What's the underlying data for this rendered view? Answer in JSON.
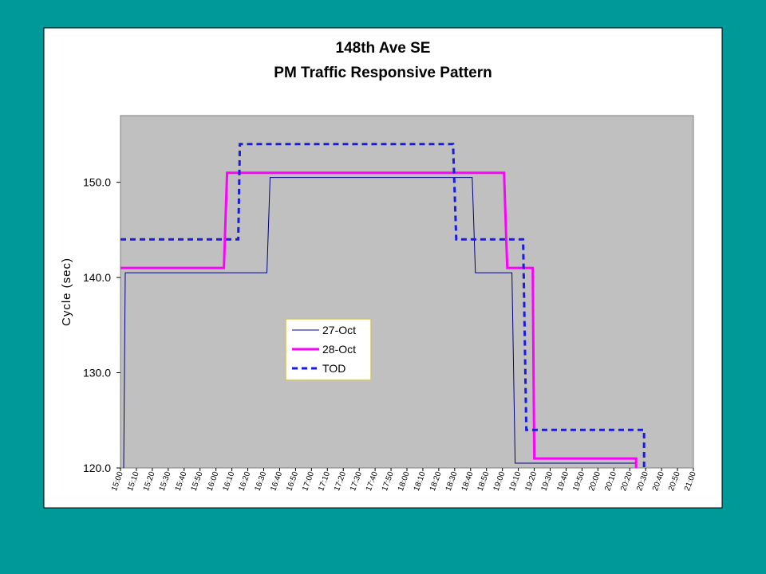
{
  "chart_data": {
    "type": "line",
    "title": "148th Ave SE",
    "subtitle": "PM Traffic Responsive Pattern",
    "y_label": "Cycle (sec)",
    "xlim": [
      "15:00",
      "21:00"
    ],
    "xticks": [
      "15:00",
      "15:10",
      "15:20",
      "15:30",
      "15:40",
      "15:50",
      "16:00",
      "16:10",
      "16:20",
      "16:30",
      "16:40",
      "16:50",
      "17:00",
      "17:10",
      "17:20",
      "17:30",
      "17:40",
      "17:50",
      "18:00",
      "18:10",
      "18:20",
      "18:30",
      "18:40",
      "18:50",
      "19:00",
      "19:10",
      "19:20",
      "19:30",
      "19:40",
      "19:50",
      "20:00",
      "20:10",
      "20:20",
      "20:30",
      "20:40",
      "20:50",
      "21:00"
    ],
    "ylim": [
      120,
      157
    ],
    "yticks": [
      {
        "value": 120,
        "label": "120.0"
      },
      {
        "value": 130,
        "label": "130.0"
      },
      {
        "value": 140,
        "label": "140.0"
      },
      {
        "value": 150,
        "label": "150.0"
      }
    ],
    "series": [
      {
        "name": "27-Oct",
        "color": "#000080",
        "style": "solid",
        "width": 1,
        "x": [
          "15:02",
          "15:03",
          "16:32",
          "16:34",
          "18:41",
          "18:43",
          "19:06",
          "19:08",
          "20:24",
          "20:24"
        ],
        "values": [
          120,
          140.5,
          140.5,
          150.5,
          150.5,
          140.5,
          140.5,
          120.5,
          120.5,
          120
        ]
      },
      {
        "name": "28-Oct",
        "color": "#ff00ff",
        "style": "solid",
        "width": 3,
        "x": [
          "15:00",
          "16:05",
          "16:07",
          "19:01",
          "19:03",
          "19:19",
          "19:20",
          "20:24",
          "20:24"
        ],
        "values": [
          141,
          141,
          151,
          151,
          141,
          141,
          121,
          121,
          120
        ]
      },
      {
        "name": "TOD",
        "color": "#1a1ae6",
        "style": "dashed",
        "width": 3,
        "x": [
          "15:00",
          "16:14",
          "16:15",
          "18:29",
          "18:31",
          "19:13",
          "19:15",
          "20:29",
          "20:29"
        ],
        "values": [
          144,
          144,
          154,
          154,
          144,
          144,
          124,
          124,
          120
        ]
      }
    ]
  }
}
